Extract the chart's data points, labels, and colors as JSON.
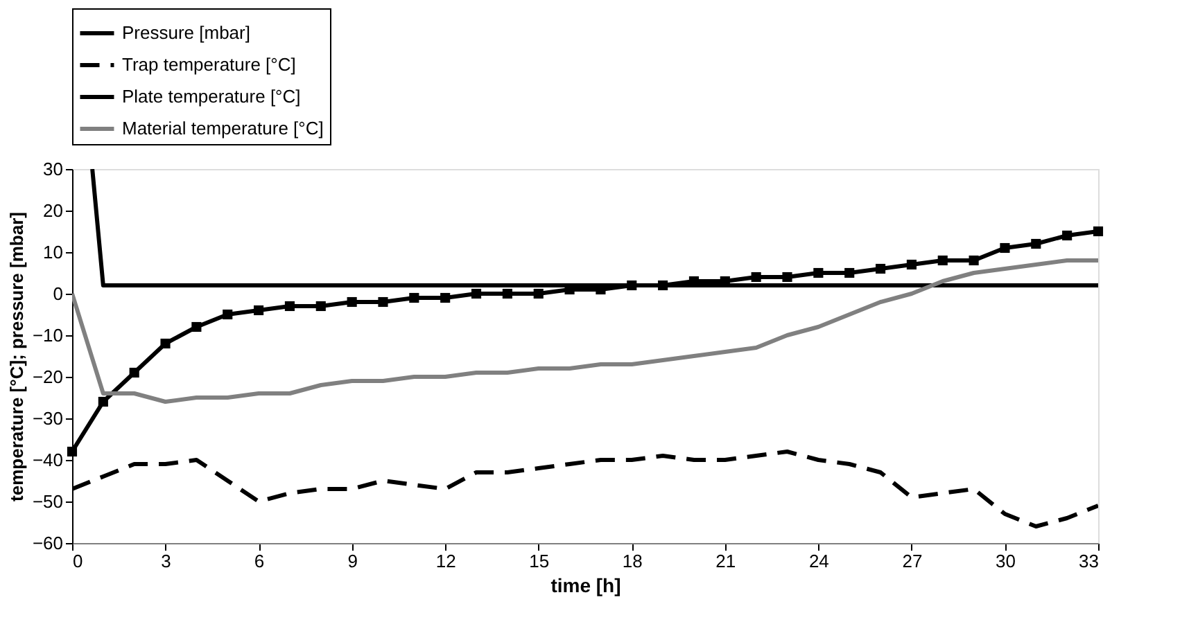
{
  "chart_data": {
    "type": "line",
    "xlabel": "time [h]",
    "ylabel": "temperature [°C]; pressure [mbar]",
    "x": [
      0,
      1,
      2,
      3,
      4,
      5,
      6,
      7,
      8,
      9,
      10,
      11,
      12,
      13,
      14,
      15,
      16,
      17,
      18,
      19,
      20,
      21,
      22,
      23,
      24,
      25,
      26,
      27,
      28,
      29,
      30,
      31,
      32,
      33
    ],
    "series": [
      {
        "name": "Pressure [mbar]",
        "color": "#000000",
        "line_style": "solid",
        "marker": "none",
        "x": [
          0.65,
          1,
          33
        ],
        "values": [
          30,
          2,
          2
        ]
      },
      {
        "name": "Trap temperature [°C]",
        "color": "#000000",
        "line_style": "dashed",
        "marker": "none",
        "values": [
          -47,
          -44,
          -41,
          -41,
          -40,
          -45,
          -50,
          -48,
          -47,
          -47,
          -45,
          -46,
          -47,
          -43,
          -43,
          -42,
          -41,
          -40,
          -40,
          -39,
          -40,
          -40,
          -39,
          -38,
          -40,
          -41,
          -43,
          -49,
          -48,
          -47,
          -53,
          -56,
          -54,
          -51
        ]
      },
      {
        "name": "Plate temperature [°C]",
        "color": "#000000",
        "line_style": "solid",
        "marker": "square",
        "values": [
          -38,
          -26,
          -19,
          -12,
          -8,
          -5,
          -4,
          -3,
          -3,
          -2,
          -2,
          -1,
          -1,
          0,
          0,
          0,
          1,
          1,
          2,
          2,
          3,
          3,
          4,
          4,
          5,
          5,
          6,
          7,
          8,
          8,
          11,
          12,
          14,
          15
        ]
      },
      {
        "name": "Material temperature [°C]",
        "color": "#808080",
        "line_style": "solid",
        "marker": "none",
        "values": [
          0,
          -24,
          -24,
          -26,
          -25,
          -25,
          -24,
          -24,
          -22,
          -21,
          -21,
          -20,
          -20,
          -19,
          -19,
          -18,
          -18,
          -17,
          -17,
          -16,
          -15,
          -14,
          -13,
          -10,
          -8,
          -5,
          -2,
          0,
          3,
          5,
          6,
          7,
          8,
          8
        ]
      }
    ],
    "xlim": [
      0,
      33
    ],
    "xticks": [
      0,
      3,
      6,
      9,
      12,
      15,
      18,
      21,
      24,
      27,
      30,
      33
    ],
    "ylim": [
      -60,
      30
    ],
    "yticks": [
      -60,
      -50,
      -40,
      -30,
      -20,
      -10,
      0,
      10,
      20,
      30
    ],
    "grid": false,
    "legend": "top"
  }
}
